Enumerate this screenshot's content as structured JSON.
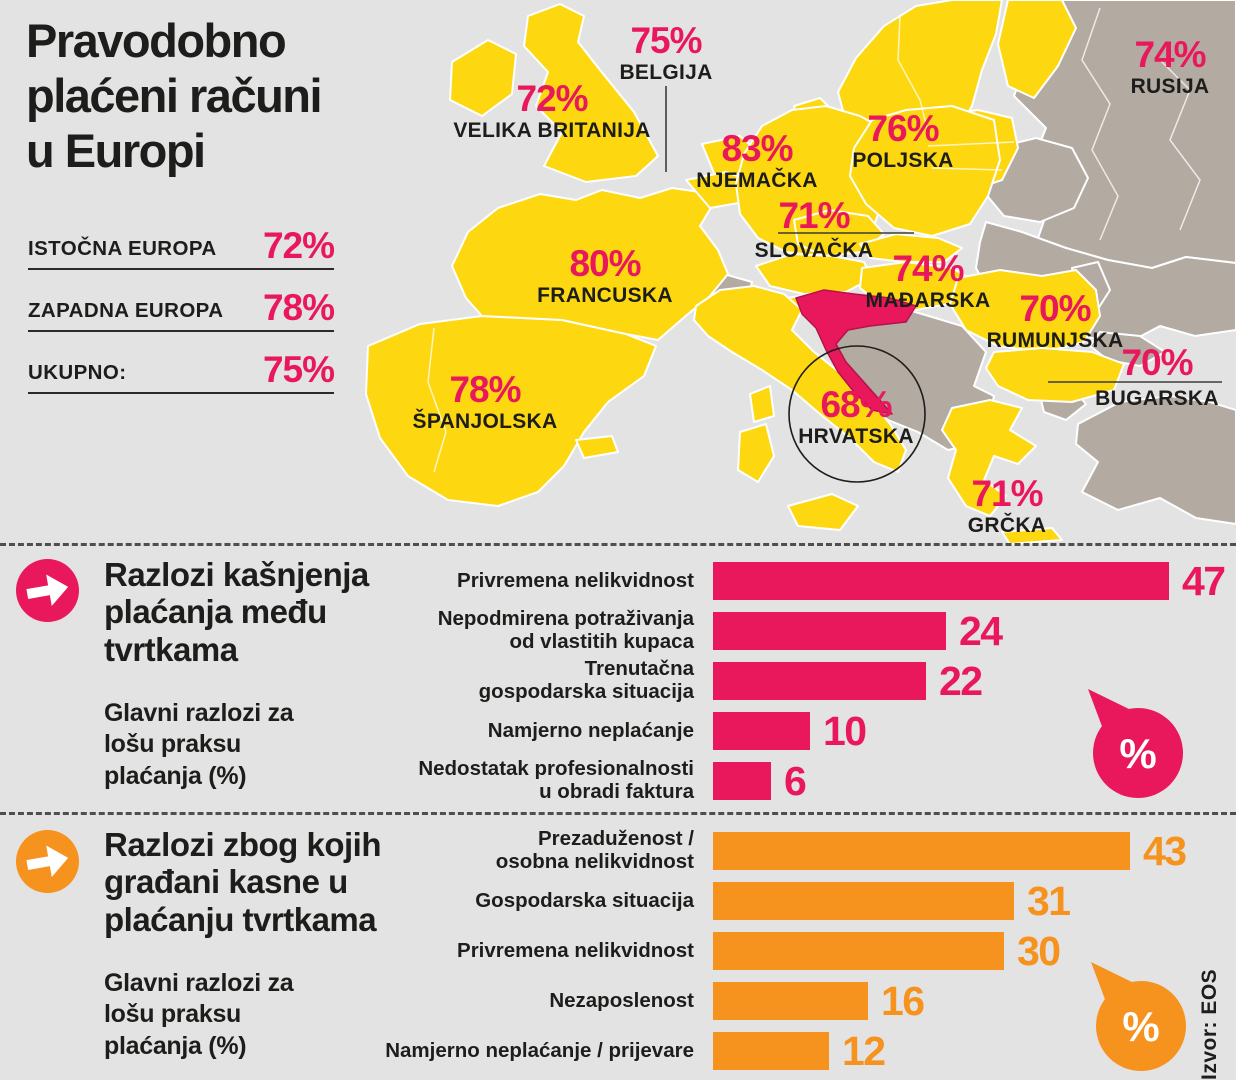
{
  "colors": {
    "pink": "#e9185c",
    "pink_dark": "#b5124a",
    "orange": "#f6921e",
    "yellow": "#fdd70f",
    "taupe": "#b3aaa2",
    "dark": "#1d1d1b",
    "background": "#e3e3e3",
    "map_border": "#ffffff"
  },
  "header": {
    "title": "Pravodobno\nplaćeni računi\nu Europi"
  },
  "summary": {
    "rows": [
      {
        "label": "ISTOČNA EUROPA",
        "value": "72%"
      },
      {
        "label": "ZAPADNA EUROPA",
        "value": "78%"
      },
      {
        "label": "UKUPNO:",
        "value": "75%"
      }
    ]
  },
  "map": {
    "labels": [
      {
        "id": "belgija",
        "value": "75%",
        "name": "BELGIJA"
      },
      {
        "id": "velika-britanija",
        "value": "72%",
        "name": "VELIKA BRITANIJA"
      },
      {
        "id": "rusija",
        "value": "74%",
        "name": "RUSIJA"
      },
      {
        "id": "njemacka",
        "value": "83%",
        "name": "NJEMAČKA"
      },
      {
        "id": "poljska",
        "value": "76%",
        "name": "POLJSKA"
      },
      {
        "id": "slovacka",
        "value": "71%",
        "name": "SLOVAČKA"
      },
      {
        "id": "francuska",
        "value": "80%",
        "name": "FRANCUSKA"
      },
      {
        "id": "madarska",
        "value": "74%",
        "name": "MAĐARSKA"
      },
      {
        "id": "rumunjska",
        "value": "70%",
        "name": "RUMUNJSKA"
      },
      {
        "id": "bugarska",
        "value": "70%",
        "name": "BUGARSKA"
      },
      {
        "id": "spanjolska",
        "value": "78%",
        "name": "ŠPANJOLSKA"
      },
      {
        "id": "hrvatska",
        "value": "68%",
        "name": "HRVATSKA"
      },
      {
        "id": "grcka",
        "value": "71%",
        "name": "GRČKA"
      }
    ]
  },
  "chart_data": [
    {
      "type": "bar",
      "orientation": "horizontal",
      "color": "#e9185c",
      "title": "Razlozi kašnjenja\nplaćanja među\ntvrtkama",
      "subtitle": "Glavni razlozi za\nlošu praksu\nplaćanja (%)",
      "unit": "%",
      "xlim": [
        0,
        50
      ],
      "categories": [
        "Privremena nelikvidnost",
        "Nepodmirena potraživanja\nod vlastitih kupaca",
        "Trenutačna\ngospodarska situacija",
        "Namjerno neplaćanje",
        "Nedostatak profesionalnosti\nu obradi faktura"
      ],
      "values": [
        47,
        24,
        22,
        10,
        6
      ]
    },
    {
      "type": "bar",
      "orientation": "horizontal",
      "color": "#f6921e",
      "title": "Razlozi zbog kojih\ngrađani kasne u\nplaćanju tvrtkama",
      "subtitle": "Glavni razlozi za\nlošu praksu\nplaćanja (%)",
      "unit": "%",
      "xlim": [
        0,
        50
      ],
      "categories": [
        "Prezaduženost /\nosobna nelikvidnost",
        "Gospodarska situacija",
        "Privremena nelikvidnost",
        "Nezaposlenost",
        "Namjerno neplaćanje / prijevare"
      ],
      "values": [
        43,
        31,
        30,
        16,
        12
      ]
    }
  ],
  "bubbles": {
    "symbol": "%"
  },
  "source": {
    "label": "Izvor: EOS"
  }
}
